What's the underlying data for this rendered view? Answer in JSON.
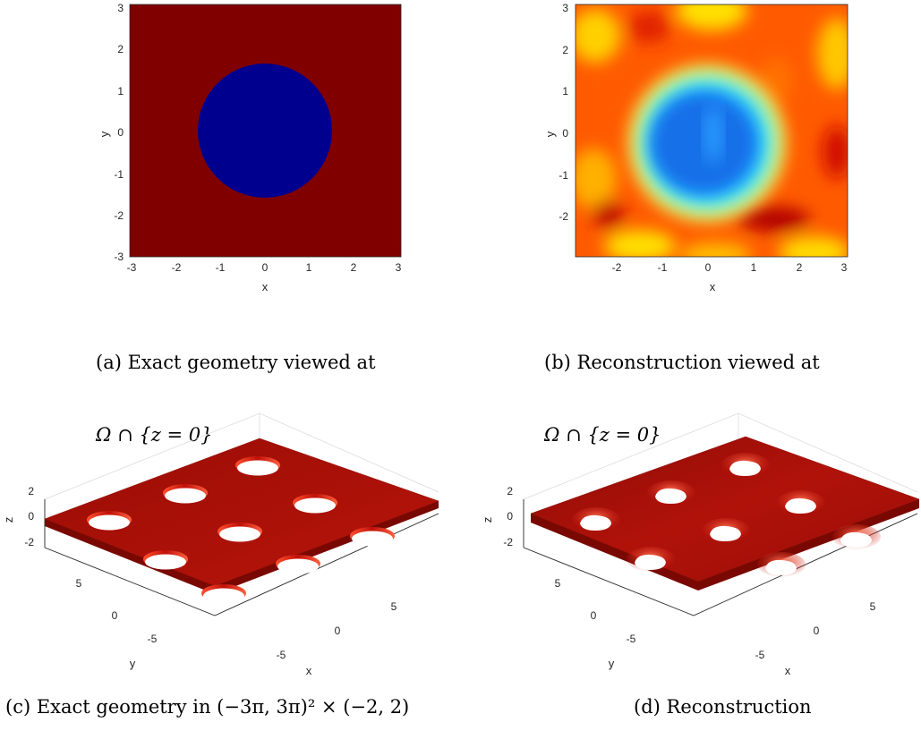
{
  "figure": {
    "panel_a": {
      "xlabel": "x",
      "ylabel": "y",
      "xticks": [
        "-3",
        "-2",
        "-1",
        "0",
        "1",
        "2",
        "3"
      ],
      "yticks": [
        "3",
        "2",
        "1",
        "0",
        "-1",
        "-2",
        "-3"
      ],
      "caption_line1": "(a) Exact geometry viewed at",
      "caption_line2": "Ω ∩ {z = 0}"
    },
    "panel_b": {
      "xlabel": "x",
      "ylabel": "y",
      "xticks": [
        "-2",
        "-1",
        "0",
        "1",
        "2",
        "3"
      ],
      "yticks": [
        "3",
        "2",
        "1",
        "0",
        "-1",
        "-2"
      ],
      "caption_line1": "(b) Reconstruction viewed at",
      "caption_line2": "Ω ∩ {z = 0}"
    },
    "panel_c": {
      "xlabel": "x",
      "ylabel": "y",
      "zlabel": "z",
      "zticks": [
        "2",
        "0",
        "-2"
      ],
      "yticks": [
        "5",
        "0",
        "-5"
      ],
      "xticks": [
        "5",
        "0",
        "-5"
      ],
      "caption": "(c) Exact geometry in (−3π, 3π)² × (−2, 2)"
    },
    "panel_d": {
      "xlabel": "x",
      "ylabel": "y",
      "zlabel": "z",
      "zticks": [
        "2",
        "0",
        "-2"
      ],
      "yticks": [
        "5",
        "0",
        "-5"
      ],
      "xticks": [
        "5",
        "0",
        "-5"
      ],
      "caption": "(d) Reconstruction"
    },
    "colors": {
      "dark_red": "#800000",
      "dark_blue": "#00008f",
      "surface_red": "#a30f08"
    }
  }
}
